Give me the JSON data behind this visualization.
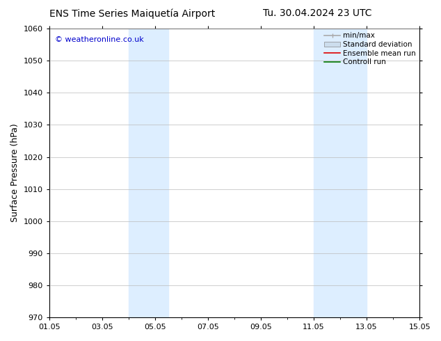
{
  "title_left": "ENS Time Series Maiquetía Airport",
  "title_right": "Tu. 30.04.2024 23 UTC",
  "ylabel": "Surface Pressure (hPa)",
  "ylim": [
    970,
    1060
  ],
  "yticks": [
    970,
    980,
    990,
    1000,
    1010,
    1020,
    1030,
    1040,
    1050,
    1060
  ],
  "xlim": [
    0,
    14
  ],
  "xtick_labels": [
    "01.05",
    "03.05",
    "05.05",
    "07.05",
    "09.05",
    "11.05",
    "13.05",
    "15.05"
  ],
  "xtick_positions": [
    0,
    2,
    4,
    6,
    8,
    10,
    12,
    14
  ],
  "shaded_regions": [
    {
      "xstart_day": 3.0,
      "xend_day": 4.5,
      "color": "#ddeeff"
    },
    {
      "xstart_day": 10.0,
      "xend_day": 12.0,
      "color": "#ddeeff"
    }
  ],
  "legend_entries": [
    {
      "label": "min/max",
      "color": "#aaaaaa",
      "lw": 1.2
    },
    {
      "label": "Standard deviation",
      "color": "#ccdded",
      "lw": 8
    },
    {
      "label": "Ensemble mean run",
      "color": "#dd0000",
      "lw": 1.2
    },
    {
      "label": "Controll run",
      "color": "#007700",
      "lw": 1.2
    }
  ],
  "watermark": "© weatheronline.co.uk",
  "watermark_color": "#0000cc",
  "background_color": "#ffffff",
  "grid_color": "#bbbbbb",
  "title_fontsize": 10,
  "ylabel_fontsize": 9,
  "tick_fontsize": 8,
  "legend_fontsize": 7.5,
  "watermark_fontsize": 8
}
